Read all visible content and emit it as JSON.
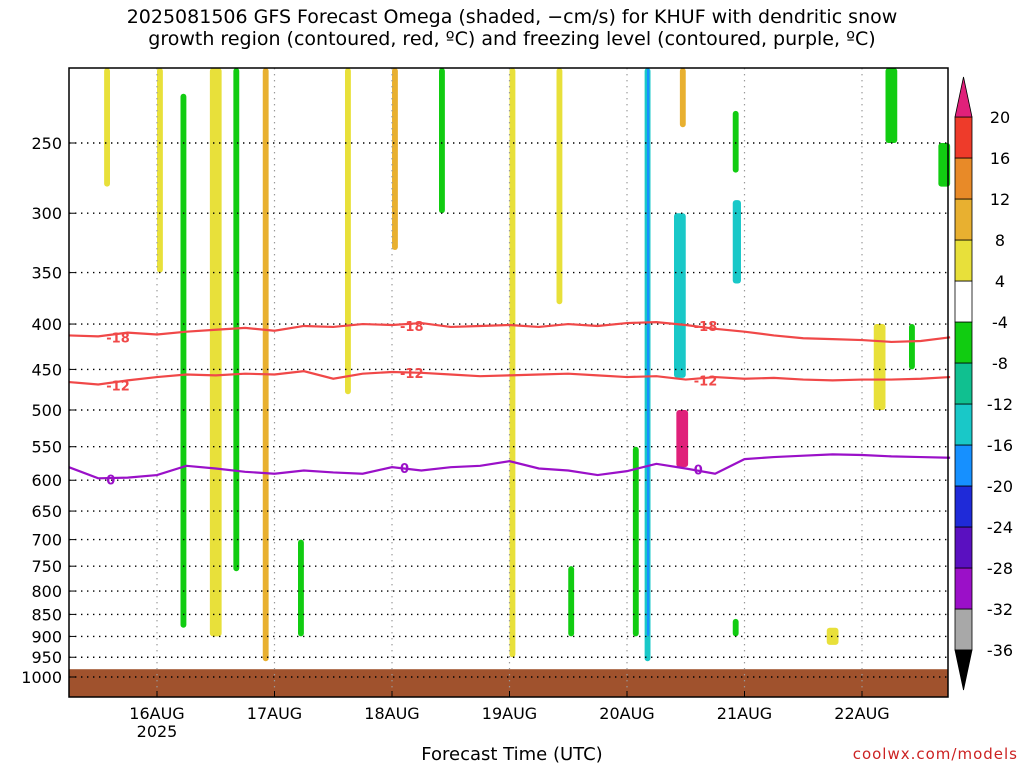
{
  "title": {
    "line1": "2025081506 GFS Forecast Omega (shaded, −cm/s) for KHUF with dendritic snow",
    "line2": "growth region (contoured, red, ºC) and freezing level (contoured, purple, ºC)"
  },
  "xlabel": "Forecast Time (UTC)",
  "credit": "coolwx.com/models",
  "chart_data": {
    "type": "heatmap",
    "title": "2025081506 GFS Forecast Omega (shaded, −cm/s) for KHUF with dendritic snow growth region (contoured, red, ºC) and freezing level (contoured, purple, ºC)",
    "xlabel": "Forecast Time (UTC)",
    "ylabel": "",
    "y_scale": "log pressure (hPa)",
    "ylim": [
      1000,
      200
    ],
    "grid": true,
    "y_ticks": [
      250,
      300,
      350,
      400,
      450,
      500,
      550,
      600,
      650,
      700,
      750,
      800,
      850,
      900,
      950,
      1000
    ],
    "x_ticks": [
      {
        "day": 16,
        "label": "16AUG",
        "sub": "2025"
      },
      {
        "day": 17,
        "label": "17AUG",
        "sub": ""
      },
      {
        "day": 18,
        "label": "18AUG",
        "sub": ""
      },
      {
        "day": 19,
        "label": "19AUG",
        "sub": ""
      },
      {
        "day": 20,
        "label": "20AUG",
        "sub": ""
      },
      {
        "day": 21,
        "label": "21AUG",
        "sub": ""
      },
      {
        "day": 22,
        "label": "22AUG",
        "sub": ""
      }
    ],
    "xlim_days": [
      15.25,
      22.75
    ],
    "colorbar": {
      "levels": [
        -36,
        -32,
        -28,
        -24,
        -20,
        -16,
        -12,
        -8,
        -4,
        4,
        8,
        12,
        16,
        20
      ],
      "colors": [
        "#a8a8a8",
        "#9b10c8",
        "#5a10c0",
        "#1f2ad8",
        "#1690ff",
        "#19c8c8",
        "#10c090",
        "#11cc11",
        "#ffffff",
        "#e8e03a",
        "#e8b030",
        "#e88a28",
        "#ee3b2a"
      ],
      "under_color": "#000000",
      "over_color": "#e0207a"
    },
    "contours": [
      {
        "name": "-18",
        "color": "#f04848",
        "points": [
          [
            15.25,
            412
          ],
          [
            15.5,
            413
          ],
          [
            15.75,
            409
          ],
          [
            16,
            411
          ],
          [
            16.25,
            408
          ],
          [
            16.5,
            406
          ],
          [
            16.75,
            404
          ],
          [
            17,
            407
          ],
          [
            17.25,
            402
          ],
          [
            17.5,
            403
          ],
          [
            17.75,
            400
          ],
          [
            18,
            401
          ],
          [
            18.25,
            399
          ],
          [
            18.5,
            403
          ],
          [
            18.75,
            402
          ],
          [
            19,
            401
          ],
          [
            19.25,
            403
          ],
          [
            19.5,
            400
          ],
          [
            19.75,
            402
          ],
          [
            20,
            399
          ],
          [
            20.25,
            398
          ],
          [
            20.5,
            401
          ],
          [
            20.75,
            405
          ],
          [
            21,
            408
          ],
          [
            21.25,
            412
          ],
          [
            21.5,
            415
          ],
          [
            21.75,
            416
          ],
          [
            22,
            417
          ],
          [
            22.25,
            419
          ],
          [
            22.5,
            418
          ],
          [
            22.75,
            414
          ]
        ]
      },
      {
        "name": "-12",
        "color": "#f04848",
        "points": [
          [
            15.25,
            465
          ],
          [
            15.5,
            468
          ],
          [
            15.75,
            463
          ],
          [
            16,
            459
          ],
          [
            16.25,
            456
          ],
          [
            16.5,
            457
          ],
          [
            16.75,
            455
          ],
          [
            17,
            456
          ],
          [
            17.25,
            452
          ],
          [
            17.5,
            461
          ],
          [
            17.75,
            455
          ],
          [
            18,
            453
          ],
          [
            18.25,
            454
          ],
          [
            18.5,
            456
          ],
          [
            18.75,
            458
          ],
          [
            19,
            457
          ],
          [
            19.25,
            456
          ],
          [
            19.5,
            455
          ],
          [
            19.75,
            457
          ],
          [
            20,
            459
          ],
          [
            20.25,
            458
          ],
          [
            20.5,
            462
          ],
          [
            20.75,
            459
          ],
          [
            21,
            461
          ],
          [
            21.25,
            460
          ],
          [
            21.5,
            462
          ],
          [
            21.75,
            463
          ],
          [
            22,
            462
          ],
          [
            22.25,
            462
          ],
          [
            22.5,
            461
          ],
          [
            22.75,
            459
          ]
        ]
      },
      {
        "name": "0",
        "color": "#9a10c8",
        "points": [
          [
            15.25,
            580
          ],
          [
            15.5,
            597
          ],
          [
            15.75,
            596
          ],
          [
            16,
            592
          ],
          [
            16.25,
            578
          ],
          [
            16.5,
            582
          ],
          [
            16.75,
            587
          ],
          [
            17,
            590
          ],
          [
            17.25,
            585
          ],
          [
            17.5,
            588
          ],
          [
            17.75,
            590
          ],
          [
            18,
            580
          ],
          [
            18.25,
            585
          ],
          [
            18.5,
            580
          ],
          [
            18.75,
            578
          ],
          [
            19,
            571
          ],
          [
            19.25,
            582
          ],
          [
            19.5,
            585
          ],
          [
            19.75,
            592
          ],
          [
            20,
            586
          ],
          [
            20.25,
            575
          ],
          [
            20.5,
            582
          ],
          [
            20.75,
            590
          ],
          [
            21,
            568
          ],
          [
            21.25,
            565
          ],
          [
            21.5,
            563
          ],
          [
            21.75,
            561
          ],
          [
            22,
            562
          ],
          [
            22.25,
            564
          ],
          [
            22.5,
            565
          ],
          [
            22.75,
            566
          ]
        ]
      }
    ],
    "shaded_features": [
      {
        "x": [
          15.55,
          15.6
        ],
        "p": [
          200,
          280
        ],
        "level": 4
      },
      {
        "x": [
          16.0,
          16.05
        ],
        "p": [
          200,
          350
        ],
        "level": 4
      },
      {
        "x": [
          16.45,
          16.55
        ],
        "p": [
          200,
          900
        ],
        "level": 4
      },
      {
        "x": [
          16.2,
          16.25
        ],
        "p": [
          220,
          880
        ],
        "level": -8
      },
      {
        "x": [
          16.65,
          16.7
        ],
        "p": [
          200,
          760
        ],
        "level": -8
      },
      {
        "x": [
          16.9,
          16.95
        ],
        "p": [
          200,
          960
        ],
        "level": 8
      },
      {
        "x": [
          17.2,
          17.25
        ],
        "p": [
          700,
          900
        ],
        "level": -8
      },
      {
        "x": [
          17.6,
          17.65
        ],
        "p": [
          200,
          480
        ],
        "level": 4
      },
      {
        "x": [
          18.0,
          18.05
        ],
        "p": [
          200,
          330
        ],
        "level": 8
      },
      {
        "x": [
          18.4,
          18.45
        ],
        "p": [
          200,
          300
        ],
        "level": -8
      },
      {
        "x": [
          19.0,
          19.05
        ],
        "p": [
          200,
          950
        ],
        "level": 4
      },
      {
        "x": [
          19.4,
          19.45
        ],
        "p": [
          200,
          380
        ],
        "level": 4
      },
      {
        "x": [
          19.5,
          19.55
        ],
        "p": [
          750,
          900
        ],
        "level": -8
      },
      {
        "x": [
          20.05,
          20.1
        ],
        "p": [
          550,
          900
        ],
        "level": -8
      },
      {
        "x": [
          20.15,
          20.2
        ],
        "p": [
          200,
          960
        ],
        "level": -16
      },
      {
        "x": [
          20.17,
          20.19
        ],
        "p": [
          200,
          900
        ],
        "level": -20
      },
      {
        "x": [
          20.4,
          20.5
        ],
        "p": [
          300,
          460
        ],
        "level": -16
      },
      {
        "x": [
          20.42,
          20.52
        ],
        "p": [
          500,
          580
        ],
        "level": 20
      },
      {
        "x": [
          20.45,
          20.5
        ],
        "p": [
          200,
          240
        ],
        "level": 8
      },
      {
        "x": [
          20.9,
          20.95
        ],
        "p": [
          230,
          270
        ],
        "level": -8
      },
      {
        "x": [
          20.9,
          20.97
        ],
        "p": [
          290,
          360
        ],
        "level": -16
      },
      {
        "x": [
          20.9,
          20.95
        ],
        "p": [
          860,
          900
        ],
        "level": -8
      },
      {
        "x": [
          21.7,
          21.8
        ],
        "p": [
          880,
          920
        ],
        "level": 4
      },
      {
        "x": [
          22.1,
          22.2
        ],
        "p": [
          400,
          500
        ],
        "level": 4
      },
      {
        "x": [
          22.2,
          22.3
        ],
        "p": [
          200,
          250
        ],
        "level": -8
      },
      {
        "x": [
          22.4,
          22.45
        ],
        "p": [
          400,
          450
        ],
        "level": -8
      },
      {
        "x": [
          22.65,
          22.75
        ],
        "p": [
          250,
          280
        ],
        "level": -8
      }
    ],
    "terrain": {
      "p": 980,
      "color": "#a0522d"
    }
  }
}
